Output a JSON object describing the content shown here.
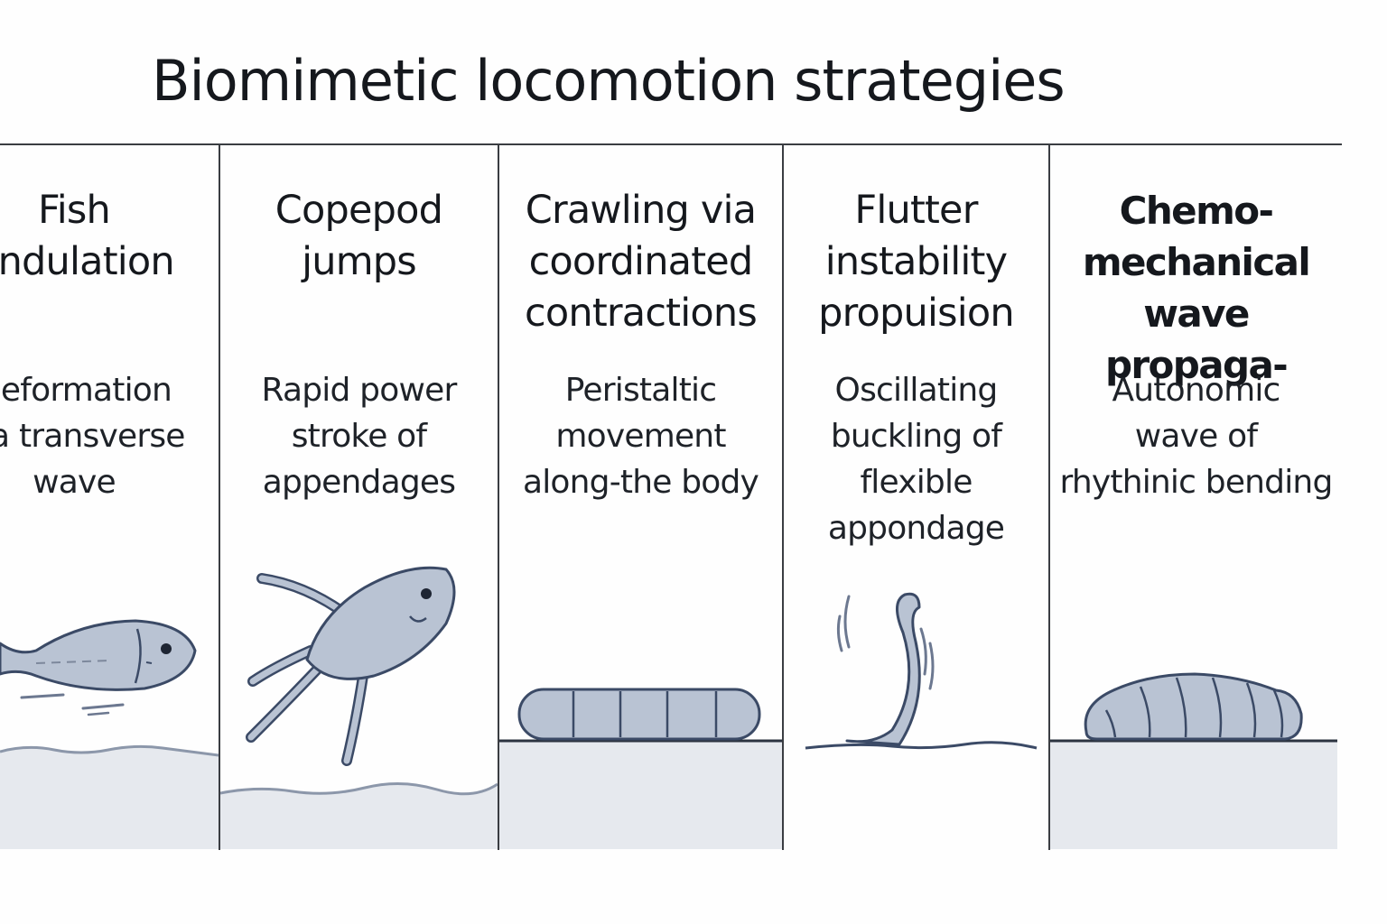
{
  "title": "Biomimetic locomotion strategies",
  "panels": [
    {
      "heading": "Fish\nundulation",
      "description": "Deformation\nvia transverse\nwave",
      "illustration": "fish-icon"
    },
    {
      "heading": "Copepod\njumps",
      "description": "Rapid power\nstroke of\nappendages",
      "illustration": "copepod-icon"
    },
    {
      "heading": "Crawling via\ncoordinated\ncontractions",
      "description": "Peristaltic\nmovement\nalong-the body",
      "illustration": "segmented-crawler-icon"
    },
    {
      "heading": "Flutter\ninstability\npropuision",
      "description": "Oscillating\nbuckling of\nflexible\nappondage",
      "illustration": "flexible-appendage-icon"
    },
    {
      "heading": "Chemo-\nmechanical\nwave propaga-",
      "description": "Autonomic\nwave of\nrhythinic bending",
      "illustration": "caterpillar-icon"
    }
  ],
  "colors": {
    "ink": "#15181d",
    "line": "#3a3d42",
    "body_fill": "#b9c3d3",
    "body_stroke": "#3b4a66",
    "ground_fill": "#e6e9ee"
  }
}
